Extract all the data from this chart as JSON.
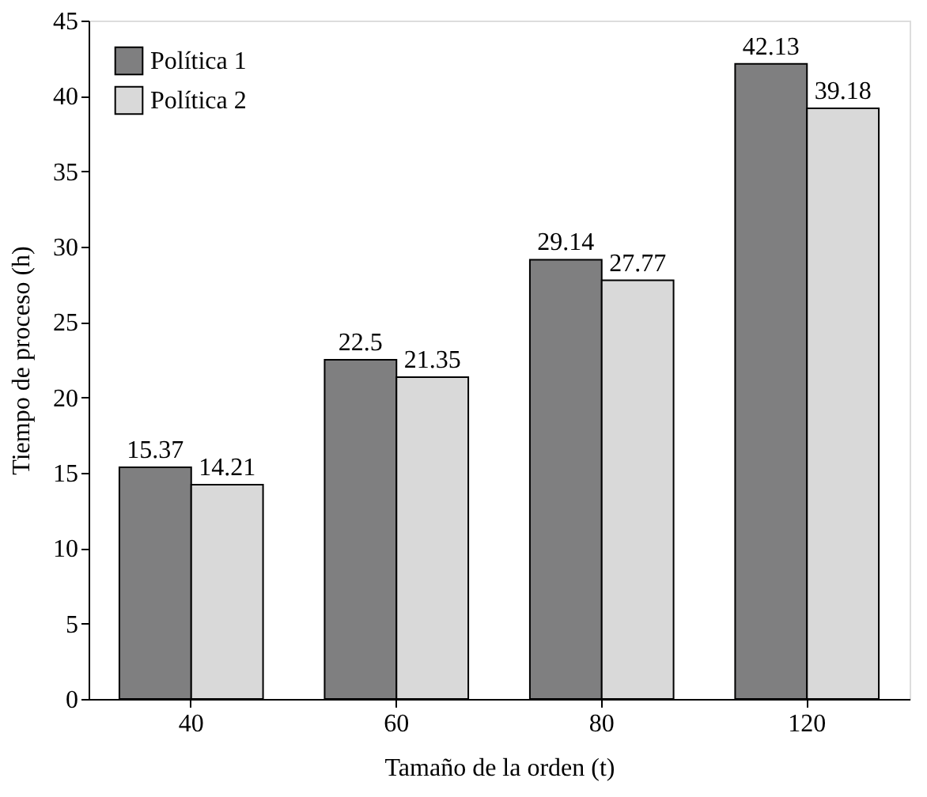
{
  "chart_data": {
    "type": "bar",
    "xlabel": "Tamaño de la orden (t)",
    "ylabel": "Tiempo de proceso (h)",
    "categories": [
      "40",
      "60",
      "80",
      "120"
    ],
    "series": [
      {
        "name": "Política 1",
        "color": "#7f7f80",
        "values": [
          15.37,
          22.5,
          29.14,
          42.13
        ]
      },
      {
        "name": "Política 2",
        "color": "#d9d9d9",
        "values": [
          14.21,
          21.35,
          27.77,
          39.18
        ]
      }
    ],
    "ylim": [
      0,
      45
    ],
    "yticks": [
      0,
      5,
      10,
      15,
      20,
      25,
      30,
      35,
      40,
      45
    ],
    "grid": false,
    "legend": "top left",
    "data_labels": true
  }
}
